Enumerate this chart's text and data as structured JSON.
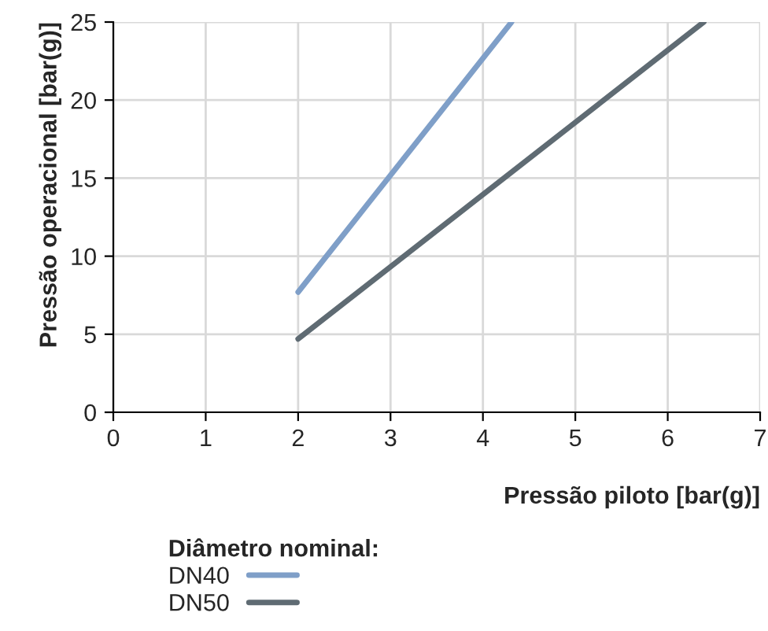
{
  "chart_data": {
    "type": "line",
    "xlabel": "Pressão piloto [bar(g)]",
    "ylabel": "Pressão operacional [bar(g)]",
    "legend_title": "Diâmetro nominal:",
    "series": [
      {
        "name": "DN40",
        "color": "#7f9fc8",
        "x": [
          2,
          4.31
        ],
        "values": [
          7.7,
          25
        ]
      },
      {
        "name": "DN50",
        "color": "#5f6b73",
        "x": [
          2,
          6.39
        ],
        "values": [
          4.7,
          25
        ]
      }
    ],
    "xlim": [
      0,
      7
    ],
    "xticks": [
      0,
      1,
      2,
      3,
      4,
      5,
      6,
      7
    ],
    "ylim": [
      0,
      25
    ],
    "yticks": [
      0,
      5,
      10,
      15,
      20,
      25
    ],
    "grid": true,
    "legend": "bottom",
    "marker": "none",
    "line_style": "solid"
  }
}
